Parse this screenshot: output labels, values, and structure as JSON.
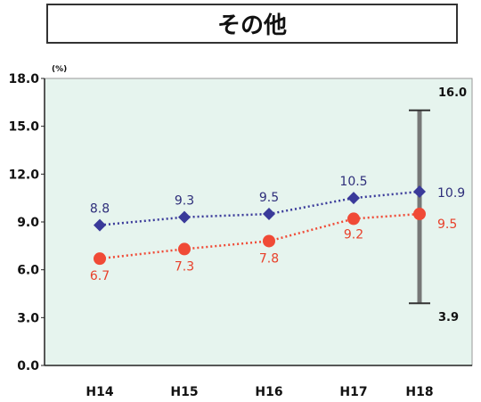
{
  "title": "その他",
  "chart_data": {
    "type": "line",
    "unit_label": "(%)",
    "categories": [
      "H14",
      "H15",
      "H16",
      "H17",
      "H18"
    ],
    "ylim": [
      0,
      18
    ],
    "yticks": [
      "0.0",
      "3.0",
      "6.0",
      "9.0",
      "12.0",
      "15.0",
      "18.0"
    ],
    "grid": false,
    "series": [
      {
        "color": "#3a3a9a",
        "marker": "diamond",
        "values": [
          8.8,
          9.3,
          9.5,
          10.5,
          10.9
        ],
        "labels": [
          "8.8",
          "9.3",
          "9.5",
          "10.5",
          "10.9"
        ]
      },
      {
        "color": "#f04a36",
        "marker": "circle",
        "values": [
          6.7,
          7.3,
          7.8,
          9.2,
          9.5
        ],
        "labels": [
          "6.7",
          "7.3",
          "7.8",
          "9.2",
          "9.5"
        ]
      }
    ],
    "range_bar": {
      "category": "H18",
      "max": 16.0,
      "min": 3.9,
      "max_label": "16.0",
      "min_label": "3.9",
      "color": "#777777"
    },
    "plot_background": "#e6f4ee"
  }
}
